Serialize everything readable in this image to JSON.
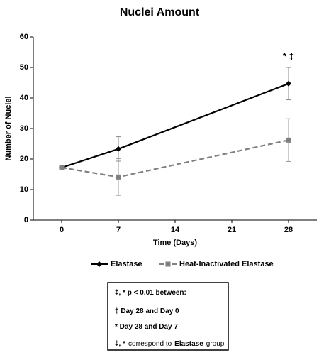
{
  "chart_data": {
    "type": "line",
    "title": "Nuclei Amount",
    "x_label": "Time (Days)",
    "y_label": "Number of Nuclei",
    "x": [
      0,
      7,
      28
    ],
    "series": [
      {
        "name": "Elastase",
        "color": "#000000",
        "dash": false,
        "marker": "diamond",
        "values": [
          17.2,
          23.3,
          44.7
        ],
        "errors": [
          null,
          4,
          5.3
        ]
      },
      {
        "name": "Heat-Inactivated Elastase",
        "color": "#808080",
        "dash": true,
        "marker": "square",
        "values": [
          17.2,
          14.1,
          26.2
        ],
        "errors": [
          null,
          6,
          7
        ]
      }
    ],
    "xlim": [
      -3.5,
      31.5
    ],
    "xticks": [
      0,
      7,
      14,
      21,
      28
    ],
    "ylim": [
      0,
      60
    ],
    "yticks": [
      0,
      10,
      20,
      30,
      40,
      50,
      60
    ],
    "grid": false,
    "legend": "bottom",
    "annotation": {
      "text": "* ‡",
      "x": 28
    },
    "note_lines": [
      [
        {
          "text": "‡, * p < 0.01 between:",
          "bold": true
        }
      ],
      [
        {
          "text": "‡ Day 28 and Day 0",
          "bold": true
        }
      ],
      [
        {
          "text": "* Day 28 and Day 7",
          "bold": true
        }
      ],
      [
        {
          "text": "‡, *",
          "bold": true
        },
        {
          "text": "correspond to",
          "bold": false
        },
        {
          "text": "Elastase",
          "bold": true
        },
        {
          "text": "group",
          "bold": false
        }
      ]
    ]
  }
}
